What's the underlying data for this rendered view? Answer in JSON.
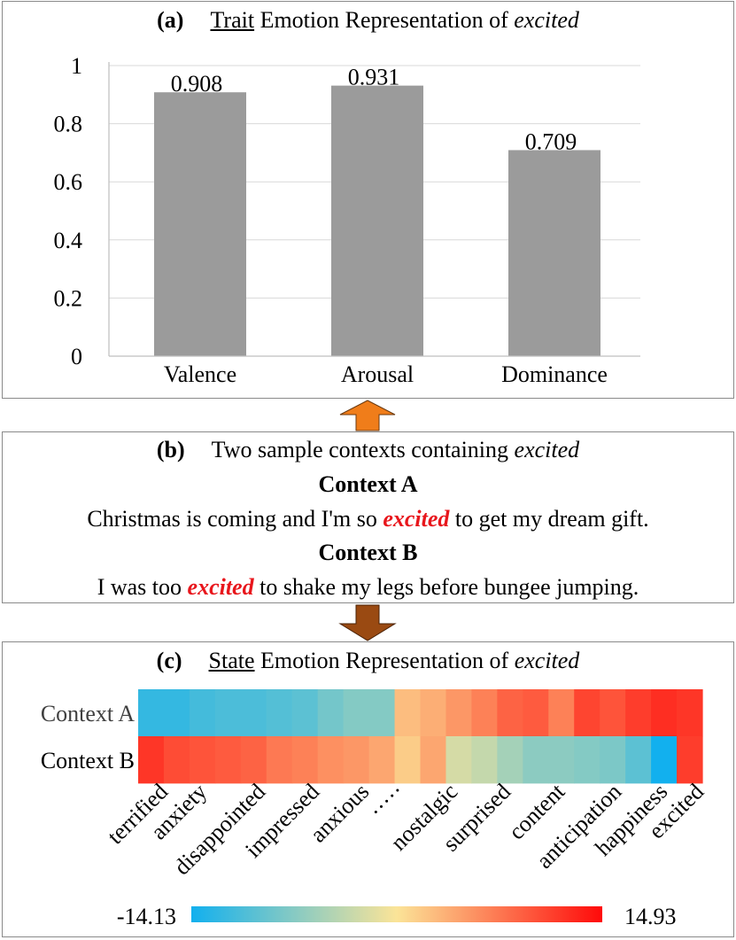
{
  "panel_a": {
    "label": "(a)",
    "title_underlined": "Trait",
    "title_rest": " Emotion Representation of ",
    "title_word": "excited"
  },
  "panel_b": {
    "label": "(b)",
    "title": "Two sample contexts containing ",
    "title_word": "excited",
    "context_a_label": "Context A",
    "context_a_before": "Christmas is coming and I'm so ",
    "context_a_word": "excited",
    "context_a_after": " to get my dream gift.",
    "context_b_label": "Context B",
    "context_b_before": "I was too ",
    "context_b_word": "excited",
    "context_b_after": " to shake my legs before bungee jumping."
  },
  "panel_c": {
    "label": "(c)",
    "title_underlined": "State",
    "title_rest": " Emotion Representation of ",
    "title_word": "excited"
  },
  "colors": {
    "bar": "#9b9b9b",
    "arrow_up": "#f07d1a",
    "arrow_down": "#9a4a12",
    "highlight": "#e8161c",
    "scale_low": "#12b0ee",
    "scale_mid": "#fbe498",
    "scale_high": "#ff0a0a"
  },
  "chart_data": [
    {
      "type": "bar",
      "categories": [
        "Valence",
        "Arousal",
        "Dominance"
      ],
      "values": [
        0.908,
        0.931,
        0.709
      ],
      "data_labels": [
        "0.908",
        "0.931",
        "0.709"
      ],
      "ylim": [
        0,
        1
      ],
      "yticks": [
        "0",
        "0.2",
        "0.4",
        "0.6",
        "0.8",
        "1"
      ],
      "ytick_values": [
        0,
        0.2,
        0.4,
        0.6,
        0.8,
        1
      ],
      "grid": true
    },
    {
      "type": "heatmap",
      "rows": [
        "Context A",
        "Context B"
      ],
      "x_labels": [
        "terrified",
        "anxiety",
        "disappointed",
        "impressed",
        "anxious",
        "·····",
        "nostalgic",
        "surprised",
        "content",
        "anticipation",
        "happiness",
        "excited"
      ],
      "values": [
        [
          -12.0,
          -12.0,
          -11.0,
          -10.5,
          -10.5,
          -10.0,
          -9.5,
          -8.0,
          -7.0,
          -7.0,
          3.0,
          4.0,
          5.5,
          7.0,
          9.0,
          9.5,
          7.0,
          11.0,
          10.0,
          11.5,
          12.5,
          12.0
        ],
        [
          12.0,
          10.5,
          10.0,
          9.5,
          9.0,
          7.5,
          7.0,
          6.0,
          5.5,
          4.5,
          2.0,
          4.5,
          -2.0,
          -3.0,
          -5.0,
          -6.5,
          -6.5,
          -7.0,
          -7.5,
          -9.5,
          -14.13,
          11.5
        ]
      ],
      "colorbar_min": "-14.13",
      "colorbar_max": "14.93",
      "min": -14.13,
      "max": 14.93
    }
  ]
}
